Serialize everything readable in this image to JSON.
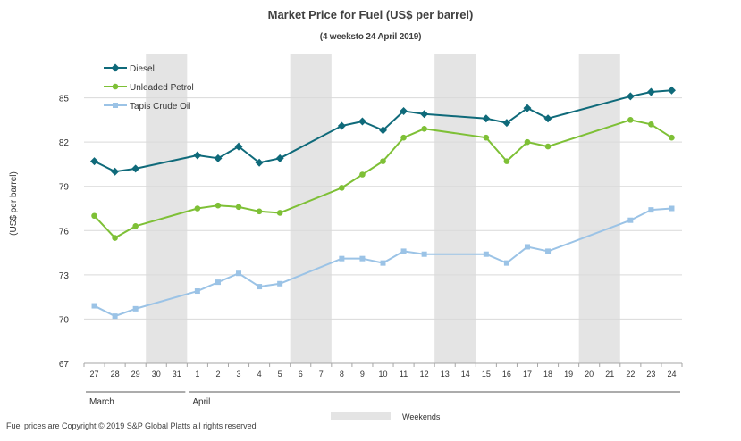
{
  "chart_data": {
    "type": "line",
    "title": "Market Price for Fuel (US$ per barrel)",
    "subtitle": "(4 weeksto 24 April 2019)",
    "ylabel": "(US$ per barrel)",
    "ylim": [
      67,
      88
    ],
    "yticks": [
      67,
      70,
      73,
      76,
      79,
      82,
      85
    ],
    "categories": [
      "27",
      "28",
      "29",
      "30",
      "31",
      "1",
      "2",
      "3",
      "4",
      "5",
      "6",
      "7",
      "8",
      "9",
      "10",
      "11",
      "12",
      "13",
      "14",
      "15",
      "16",
      "17",
      "18",
      "19",
      "20",
      "21",
      "22",
      "23",
      "24"
    ],
    "month_labels": [
      {
        "label": "March",
        "start": 0,
        "end": 4
      },
      {
        "label": "April",
        "start": 5,
        "end": 28
      }
    ],
    "weekends": [
      [
        3,
        4
      ],
      [
        10,
        11
      ],
      [
        17,
        18
      ],
      [
        24,
        25
      ]
    ],
    "weekend_legend": "Weekends",
    "series": [
      {
        "name": "Diesel",
        "color": "#0f6a7a",
        "marker": "diamond",
        "values": [
          80.7,
          80.0,
          80.2,
          null,
          null,
          81.1,
          80.9,
          81.7,
          80.6,
          80.9,
          null,
          null,
          83.1,
          83.4,
          82.8,
          84.1,
          83.9,
          null,
          null,
          83.6,
          83.3,
          84.3,
          83.6,
          null,
          null,
          null,
          85.1,
          85.4,
          85.5
        ]
      },
      {
        "name": "Unleaded Petrol",
        "color": "#7ec036",
        "marker": "circle",
        "values": [
          77.0,
          75.5,
          76.3,
          null,
          null,
          77.5,
          77.7,
          77.6,
          77.3,
          77.2,
          null,
          null,
          78.9,
          79.8,
          80.7,
          82.3,
          82.9,
          null,
          null,
          82.3,
          80.7,
          82.0,
          81.7,
          null,
          null,
          null,
          83.5,
          83.2,
          82.3
        ]
      },
      {
        "name": "Tapis Crude Oil",
        "color": "#9bc3e6",
        "marker": "square",
        "values": [
          70.9,
          70.2,
          70.7,
          null,
          null,
          71.9,
          72.5,
          73.1,
          72.2,
          72.4,
          null,
          null,
          74.1,
          74.1,
          73.8,
          74.6,
          74.4,
          null,
          null,
          74.4,
          73.8,
          74.9,
          74.6,
          null,
          null,
          null,
          76.7,
          77.4,
          77.5
        ]
      }
    ]
  },
  "footer": "Fuel prices are Copyright © 2019 S&P Global Platts all rights reserved"
}
